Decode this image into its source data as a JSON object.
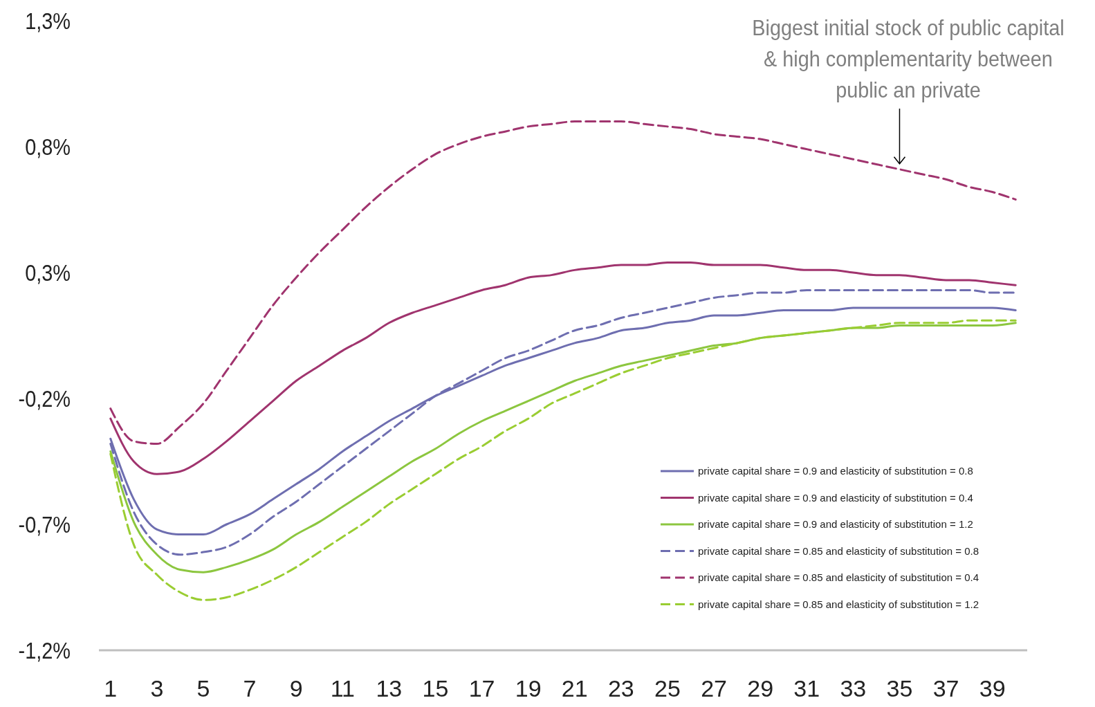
{
  "chart_data": {
    "type": "line",
    "x": [
      1,
      2,
      3,
      4,
      5,
      6,
      7,
      8,
      9,
      10,
      11,
      12,
      13,
      14,
      15,
      16,
      17,
      18,
      19,
      20,
      21,
      22,
      23,
      24,
      25,
      26,
      27,
      28,
      29,
      30,
      31,
      32,
      33,
      34,
      35,
      36,
      37,
      38,
      39,
      40
    ],
    "xlim": [
      0.5,
      40.5
    ],
    "xticks": [
      1,
      3,
      5,
      7,
      9,
      11,
      13,
      15,
      17,
      19,
      21,
      23,
      25,
      27,
      29,
      31,
      33,
      35,
      37,
      39
    ],
    "ylim": [
      -1.2,
      1.3
    ],
    "yticks": [
      {
        "value": 1.3,
        "label": "1,3%"
      },
      {
        "value": 0.8,
        "label": "0,8%"
      },
      {
        "value": 0.3,
        "label": "0,3%"
      },
      {
        "value": -0.2,
        "label": "-0,2%"
      },
      {
        "value": -0.7,
        "label": "-0,7%"
      },
      {
        "value": -1.2,
        "label": "-1,2%"
      }
    ],
    "grid": false,
    "legend": "bottom right",
    "marker": "none",
    "annotations": [
      {
        "text": "Biggest initial stock of public capital\n& high complementarity between\npublic an private",
        "x": 35,
        "y": 0.71
      }
    ],
    "series": [
      {
        "name": "private capital share = 0.9 and elasticity of substitution = 0.8",
        "color": "#6e6eb0",
        "line_style": "solid",
        "values": [
          -0.36,
          -0.6,
          -0.72,
          -0.74,
          -0.74,
          -0.7,
          -0.66,
          -0.6,
          -0.54,
          -0.48,
          -0.41,
          -0.35,
          -0.29,
          -0.24,
          -0.19,
          -0.15,
          -0.11,
          -0.07,
          -0.04,
          -0.01,
          0.02,
          0.04,
          0.07,
          0.08,
          0.1,
          0.11,
          0.13,
          0.13,
          0.14,
          0.15,
          0.15,
          0.15,
          0.16,
          0.16,
          0.16,
          0.16,
          0.16,
          0.16,
          0.16,
          0.15
        ]
      },
      {
        "name": "private capital share = 0.9 and elasticity of substitution = 0.4",
        "color": "#a0346e",
        "line_style": "solid",
        "values": [
          -0.28,
          -0.45,
          -0.5,
          -0.49,
          -0.44,
          -0.37,
          -0.29,
          -0.21,
          -0.13,
          -0.07,
          -0.01,
          0.04,
          0.1,
          0.14,
          0.17,
          0.2,
          0.23,
          0.25,
          0.28,
          0.29,
          0.31,
          0.32,
          0.33,
          0.33,
          0.34,
          0.34,
          0.33,
          0.33,
          0.33,
          0.32,
          0.31,
          0.31,
          0.3,
          0.29,
          0.29,
          0.28,
          0.27,
          0.27,
          0.26,
          0.25
        ]
      },
      {
        "name": "private capital share = 0.9 and elasticity of substitution = 1.2",
        "color": "#8cc63f",
        "line_style": "solid",
        "values": [
          -0.41,
          -0.69,
          -0.82,
          -0.88,
          -0.89,
          -0.87,
          -0.84,
          -0.8,
          -0.74,
          -0.69,
          -0.63,
          -0.57,
          -0.51,
          -0.45,
          -0.4,
          -0.34,
          -0.29,
          -0.25,
          -0.21,
          -0.17,
          -0.13,
          -0.1,
          -0.07,
          -0.05,
          -0.03,
          -0.01,
          0.01,
          0.02,
          0.04,
          0.05,
          0.06,
          0.07,
          0.08,
          0.08,
          0.09,
          0.09,
          0.09,
          0.09,
          0.09,
          0.1
        ]
      },
      {
        "name": "private capital share = 0.85 and elasticity of substitution = 0.8",
        "color": "#6e6eb0",
        "line_style": "dashed",
        "values": [
          -0.38,
          -0.65,
          -0.78,
          -0.82,
          -0.81,
          -0.79,
          -0.74,
          -0.67,
          -0.61,
          -0.54,
          -0.47,
          -0.4,
          -0.33,
          -0.26,
          -0.19,
          -0.14,
          -0.09,
          -0.04,
          -0.01,
          0.03,
          0.07,
          0.09,
          0.12,
          0.14,
          0.16,
          0.18,
          0.2,
          0.21,
          0.22,
          0.22,
          0.23,
          0.23,
          0.23,
          0.23,
          0.23,
          0.23,
          0.23,
          0.23,
          0.22,
          0.22
        ]
      },
      {
        "name": "private capital share = 0.85 and elasticity of substitution = 0.4",
        "color": "#a0346e",
        "line_style": "dashed",
        "values": [
          -0.24,
          -0.37,
          -0.38,
          -0.31,
          -0.22,
          -0.09,
          0.04,
          0.17,
          0.28,
          0.38,
          0.47,
          0.56,
          0.64,
          0.71,
          0.77,
          0.81,
          0.84,
          0.86,
          0.88,
          0.89,
          0.9,
          0.9,
          0.9,
          0.89,
          0.88,
          0.87,
          0.85,
          0.84,
          0.83,
          0.81,
          0.79,
          0.77,
          0.75,
          0.73,
          0.71,
          0.69,
          0.67,
          0.64,
          0.62,
          0.59
        ]
      },
      {
        "name": "private capital share = 0.85 and elasticity of substitution = 1.2",
        "color": "#9acd32",
        "line_style": "dashed",
        "values": [
          -0.42,
          -0.78,
          -0.9,
          -0.97,
          -1.0,
          -0.99,
          -0.96,
          -0.92,
          -0.87,
          -0.81,
          -0.75,
          -0.69,
          -0.62,
          -0.56,
          -0.5,
          -0.44,
          -0.39,
          -0.33,
          -0.28,
          -0.22,
          -0.18,
          -0.14,
          -0.1,
          -0.07,
          -0.04,
          -0.02,
          0.0,
          0.02,
          0.04,
          0.05,
          0.06,
          0.07,
          0.08,
          0.09,
          0.1,
          0.1,
          0.1,
          0.11,
          0.11,
          0.11
        ]
      }
    ]
  }
}
